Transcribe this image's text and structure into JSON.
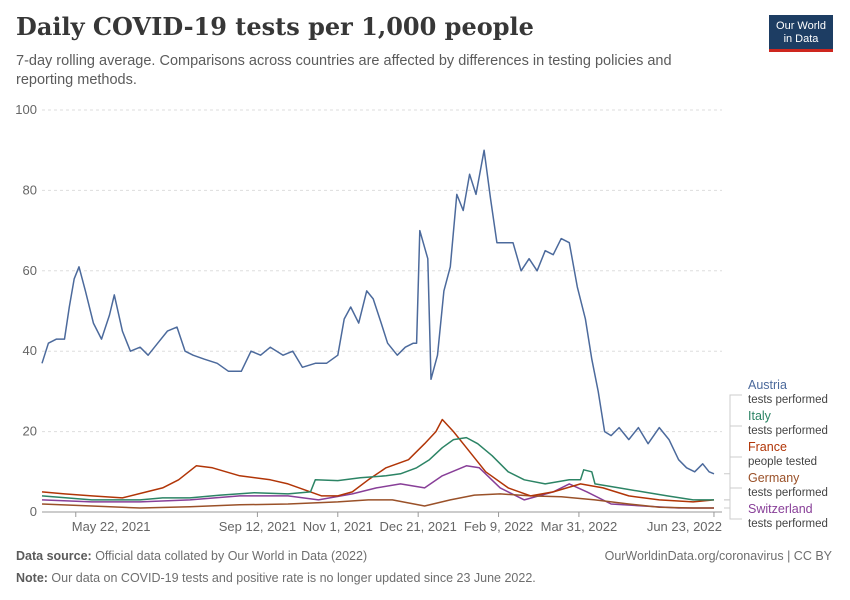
{
  "header": {
    "title": "Daily COVID-19 tests per 1,000 people",
    "subtitle": "7-day rolling average. Comparisons across countries are affected by differences in testing policies and reporting methods."
  },
  "logo": {
    "line1": "Our World",
    "line2": "in Data",
    "bg_color": "#1d3d63",
    "accent_color": "#ce261e"
  },
  "footer": {
    "source_label": "Data source:",
    "source_text": " Official data collated by Our World in Data (2022)",
    "url_license": "OurWorldinData.org/coronavirus | CC BY",
    "note_label": "Note:",
    "note_text": " Our data on COVID-19 tests and positive rate is no longer updated since 23 June 2022."
  },
  "chart_data": {
    "type": "line",
    "ylim": [
      0,
      100
    ],
    "xlim": [
      "2021-05-01",
      "2022-06-28"
    ],
    "y_ticks": [
      0,
      20,
      40,
      60,
      80,
      100
    ],
    "x_ticks": [
      {
        "date": "2021-05-22",
        "label": "May 22, 2021"
      },
      {
        "date": "2021-09-12",
        "label": "Sep 12, 2021"
      },
      {
        "date": "2021-11-01",
        "label": "Nov 1, 2021"
      },
      {
        "date": "2021-12-21",
        "label": "Dec 21, 2021"
      },
      {
        "date": "2022-02-09",
        "label": "Feb 9, 2022"
      },
      {
        "date": "2022-03-31",
        "label": "Mar 31, 2022"
      },
      {
        "date": "2022-06-23",
        "label": "Jun 23, 2022"
      }
    ],
    "grid": "horizontal-dashed",
    "legend": "right, labels at line ends",
    "series": [
      {
        "name": "Austria",
        "sublabel": "tests performed",
        "color": "#4c6a9c",
        "points": [
          [
            "2021-05-01",
            37
          ],
          [
            "2021-05-05",
            42
          ],
          [
            "2021-05-10",
            43
          ],
          [
            "2021-05-15",
            43
          ],
          [
            "2021-05-18",
            51
          ],
          [
            "2021-05-21",
            58
          ],
          [
            "2021-05-24",
            61
          ],
          [
            "2021-05-28",
            55
          ],
          [
            "2021-06-02",
            47
          ],
          [
            "2021-06-07",
            43
          ],
          [
            "2021-06-12",
            49
          ],
          [
            "2021-06-15",
            54
          ],
          [
            "2021-06-20",
            45
          ],
          [
            "2021-06-25",
            40
          ],
          [
            "2021-07-01",
            41
          ],
          [
            "2021-07-06",
            39
          ],
          [
            "2021-07-12",
            42
          ],
          [
            "2021-07-18",
            45
          ],
          [
            "2021-07-24",
            46
          ],
          [
            "2021-07-29",
            40
          ],
          [
            "2021-08-03",
            39
          ],
          [
            "2021-08-10",
            38
          ],
          [
            "2021-08-18",
            37
          ],
          [
            "2021-08-25",
            35
          ],
          [
            "2021-09-02",
            35
          ],
          [
            "2021-09-08",
            40
          ],
          [
            "2021-09-14",
            39
          ],
          [
            "2021-09-20",
            41
          ],
          [
            "2021-09-28",
            39
          ],
          [
            "2021-10-04",
            40
          ],
          [
            "2021-10-10",
            36
          ],
          [
            "2021-10-18",
            37
          ],
          [
            "2021-10-25",
            37
          ],
          [
            "2021-11-01",
            39
          ],
          [
            "2021-11-05",
            48
          ],
          [
            "2021-11-09",
            51
          ],
          [
            "2021-11-14",
            47
          ],
          [
            "2021-11-19",
            55
          ],
          [
            "2021-11-23",
            53
          ],
          [
            "2021-11-28",
            47
          ],
          [
            "2021-12-02",
            42
          ],
          [
            "2021-12-08",
            39
          ],
          [
            "2021-12-13",
            41
          ],
          [
            "2021-12-18",
            42
          ],
          [
            "2021-12-20",
            42
          ],
          [
            "2021-12-22",
            70
          ],
          [
            "2021-12-27",
            63
          ],
          [
            "2021-12-29",
            33
          ],
          [
            "2022-01-02",
            39
          ],
          [
            "2022-01-06",
            55
          ],
          [
            "2022-01-10",
            61
          ],
          [
            "2022-01-14",
            79
          ],
          [
            "2022-01-18",
            75
          ],
          [
            "2022-01-22",
            84
          ],
          [
            "2022-01-26",
            79
          ],
          [
            "2022-01-31",
            90
          ],
          [
            "2022-02-04",
            78
          ],
          [
            "2022-02-08",
            67
          ],
          [
            "2022-02-13",
            67
          ],
          [
            "2022-02-18",
            67
          ],
          [
            "2022-02-23",
            60
          ],
          [
            "2022-02-28",
            63
          ],
          [
            "2022-03-05",
            60
          ],
          [
            "2022-03-10",
            65
          ],
          [
            "2022-03-15",
            64
          ],
          [
            "2022-03-20",
            68
          ],
          [
            "2022-03-25",
            67
          ],
          [
            "2022-03-30",
            56
          ],
          [
            "2022-04-04",
            48
          ],
          [
            "2022-04-08",
            38
          ],
          [
            "2022-04-12",
            30
          ],
          [
            "2022-04-16",
            20
          ],
          [
            "2022-04-20",
            19
          ],
          [
            "2022-04-25",
            21
          ],
          [
            "2022-05-01",
            18
          ],
          [
            "2022-05-07",
            21
          ],
          [
            "2022-05-13",
            17
          ],
          [
            "2022-05-20",
            21
          ],
          [
            "2022-05-26",
            18
          ],
          [
            "2022-06-01",
            13
          ],
          [
            "2022-06-06",
            11
          ],
          [
            "2022-06-11",
            10
          ],
          [
            "2022-06-16",
            12
          ],
          [
            "2022-06-20",
            10
          ],
          [
            "2022-06-23",
            9.5
          ]
        ]
      },
      {
        "name": "Italy",
        "sublabel": "tests performed",
        "color": "#2c8465",
        "points": [
          [
            "2021-05-01",
            4
          ],
          [
            "2021-06-01",
            3
          ],
          [
            "2021-07-01",
            3
          ],
          [
            "2021-07-15",
            3.5
          ],
          [
            "2021-08-01",
            3.5
          ],
          [
            "2021-08-20",
            4.2
          ],
          [
            "2021-09-10",
            4.8
          ],
          [
            "2021-10-01",
            4.5
          ],
          [
            "2021-10-15",
            5
          ],
          [
            "2021-10-18",
            8
          ],
          [
            "2021-11-01",
            7.8
          ],
          [
            "2021-11-15",
            8.5
          ],
          [
            "2021-12-01",
            9
          ],
          [
            "2021-12-10",
            9.5
          ],
          [
            "2021-12-20",
            11
          ],
          [
            "2021-12-28",
            13
          ],
          [
            "2022-01-05",
            16
          ],
          [
            "2022-01-12",
            18
          ],
          [
            "2022-01-20",
            18.5
          ],
          [
            "2022-01-27",
            17
          ],
          [
            "2022-02-05",
            14
          ],
          [
            "2022-02-15",
            10
          ],
          [
            "2022-02-25",
            8
          ],
          [
            "2022-03-10",
            7
          ],
          [
            "2022-03-25",
            8
          ],
          [
            "2022-04-01",
            8
          ],
          [
            "2022-04-03",
            10.5
          ],
          [
            "2022-04-08",
            10
          ],
          [
            "2022-04-10",
            7
          ],
          [
            "2022-04-25",
            6
          ],
          [
            "2022-05-10",
            5
          ],
          [
            "2022-05-25",
            4
          ],
          [
            "2022-06-10",
            3
          ],
          [
            "2022-06-23",
            3
          ]
        ]
      },
      {
        "name": "France",
        "sublabel": "people tested",
        "color": "#b13507",
        "points": [
          [
            "2021-05-01",
            5
          ],
          [
            "2021-05-15",
            4.5
          ],
          [
            "2021-06-01",
            4
          ],
          [
            "2021-06-20",
            3.5
          ],
          [
            "2021-07-05",
            5
          ],
          [
            "2021-07-15",
            6
          ],
          [
            "2021-07-25",
            8
          ],
          [
            "2021-08-05",
            11.5
          ],
          [
            "2021-08-15",
            11
          ],
          [
            "2021-09-01",
            9
          ],
          [
            "2021-09-20",
            8
          ],
          [
            "2021-10-01",
            7
          ],
          [
            "2021-10-15",
            5
          ],
          [
            "2021-10-22",
            4
          ],
          [
            "2021-11-01",
            4
          ],
          [
            "2021-11-10",
            5
          ],
          [
            "2021-11-20",
            8
          ],
          [
            "2021-12-01",
            11
          ],
          [
            "2021-12-15",
            13
          ],
          [
            "2021-12-25",
            17
          ],
          [
            "2022-01-01",
            20
          ],
          [
            "2022-01-05",
            23
          ],
          [
            "2022-01-12",
            20
          ],
          [
            "2022-01-20",
            16
          ],
          [
            "2022-02-01",
            10
          ],
          [
            "2022-02-15",
            6
          ],
          [
            "2022-03-01",
            4
          ],
          [
            "2022-03-15",
            5
          ],
          [
            "2022-04-01",
            7
          ],
          [
            "2022-04-15",
            6
          ],
          [
            "2022-05-01",
            4
          ],
          [
            "2022-05-20",
            3
          ],
          [
            "2022-06-10",
            2.5
          ],
          [
            "2022-06-23",
            3
          ]
        ]
      },
      {
        "name": "Germany",
        "sublabel": "tests performed",
        "color": "#9a5129",
        "points": [
          [
            "2021-05-01",
            2
          ],
          [
            "2021-06-01",
            1.5
          ],
          [
            "2021-07-01",
            1
          ],
          [
            "2021-08-01",
            1.3
          ],
          [
            "2021-09-01",
            1.8
          ],
          [
            "2021-10-01",
            2
          ],
          [
            "2021-11-01",
            2.5
          ],
          [
            "2021-11-20",
            3
          ],
          [
            "2021-12-05",
            3
          ],
          [
            "2021-12-25",
            1.5
          ],
          [
            "2022-01-10",
            3
          ],
          [
            "2022-01-25",
            4.2
          ],
          [
            "2022-02-10",
            4.5
          ],
          [
            "2022-03-01",
            4
          ],
          [
            "2022-03-20",
            3.8
          ],
          [
            "2022-04-10",
            3
          ],
          [
            "2022-05-01",
            2
          ],
          [
            "2022-05-20",
            1.2
          ],
          [
            "2022-06-10",
            1
          ],
          [
            "2022-06-23",
            1
          ]
        ]
      },
      {
        "name": "Switzerland",
        "sublabel": "tests performed",
        "color": "#883f98",
        "points": [
          [
            "2021-05-01",
            3
          ],
          [
            "2021-06-01",
            2.5
          ],
          [
            "2021-07-01",
            2.5
          ],
          [
            "2021-08-01",
            3
          ],
          [
            "2021-09-01",
            4
          ],
          [
            "2021-10-01",
            4
          ],
          [
            "2021-10-20",
            3
          ],
          [
            "2021-11-10",
            4.5
          ],
          [
            "2021-11-25",
            6
          ],
          [
            "2021-12-10",
            7
          ],
          [
            "2021-12-25",
            6
          ],
          [
            "2022-01-05",
            9
          ],
          [
            "2022-01-20",
            11.5
          ],
          [
            "2022-01-28",
            11
          ],
          [
            "2022-02-10",
            6
          ],
          [
            "2022-02-25",
            3
          ],
          [
            "2022-03-15",
            5
          ],
          [
            "2022-03-25",
            7
          ],
          [
            "2022-04-05",
            5
          ],
          [
            "2022-04-20",
            2
          ],
          [
            "2022-05-10",
            1.5
          ],
          [
            "2022-06-01",
            1
          ],
          [
            "2022-06-23",
            1
          ]
        ]
      }
    ]
  }
}
